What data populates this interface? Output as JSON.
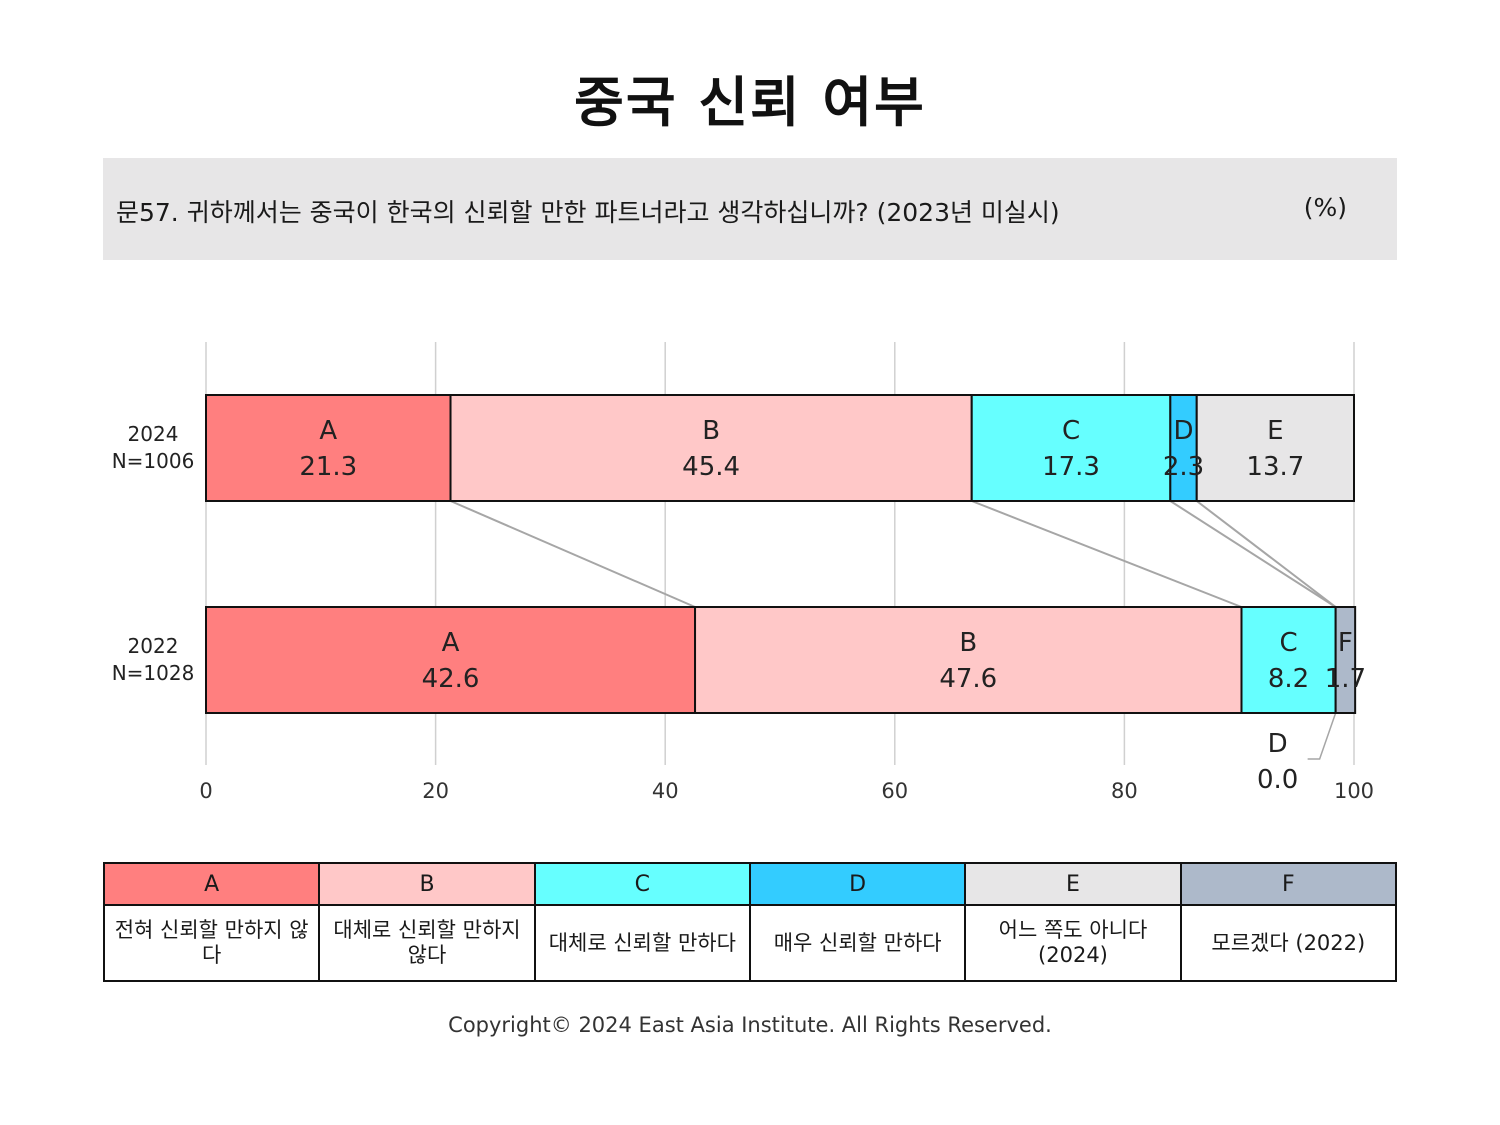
{
  "title": "중국 신뢰 여부",
  "question": "문57. 귀하께서는 중국이 한국의 신뢰할 만한 파트너라고 생각하십니까? (2023년 미실시)",
  "unit": "(%)",
  "copyright": "Copyright© 2024 East Asia Institute. All Rights Reserved.",
  "chart_data": {
    "type": "bar",
    "orientation": "horizontal",
    "stacked": true,
    "xlim": [
      0,
      100
    ],
    "x_ticks": [
      0,
      20,
      40,
      60,
      80,
      100
    ],
    "grid": true,
    "rows": [
      {
        "label_year": "2024",
        "label_n": "N=1006",
        "segments": [
          {
            "key": "A",
            "value": 21.3,
            "label": "21.3"
          },
          {
            "key": "B",
            "value": 45.4,
            "label": "45.4"
          },
          {
            "key": "C",
            "value": 17.3,
            "label": "17.3"
          },
          {
            "key": "D",
            "value": 2.3,
            "label": "2.3"
          },
          {
            "key": "E",
            "value": 13.7,
            "label": "13.7"
          }
        ]
      },
      {
        "label_year": "2022",
        "label_n": "N=1028",
        "segments": [
          {
            "key": "A",
            "value": 42.6,
            "label": "42.6"
          },
          {
            "key": "B",
            "value": 47.6,
            "label": "47.6"
          },
          {
            "key": "C",
            "value": 8.2,
            "label": "8.2"
          },
          {
            "key": "D",
            "value": 0.0,
            "label": "0.0"
          },
          {
            "key": "F",
            "value": 1.7,
            "label": "1.7"
          }
        ]
      }
    ],
    "categories": [
      {
        "key": "A",
        "label": "전혀 신뢰할 만하지 않다",
        "color": "#ff7f7f"
      },
      {
        "key": "B",
        "label": "대체로 신뢰할 만하지 않다",
        "color": "#ffc8c8"
      },
      {
        "key": "C",
        "label": "대체로 신뢰할 만하다",
        "color": "#66ffff"
      },
      {
        "key": "D",
        "label": "매우 신뢰할 만하다",
        "color": "#33ccff"
      },
      {
        "key": "E",
        "label": "어느 쪽도 아니다 (2024)",
        "color": "#e7e6e7"
      },
      {
        "key": "F",
        "label": "모르겠다 (2022)",
        "color": "#adb9ca"
      }
    ]
  }
}
